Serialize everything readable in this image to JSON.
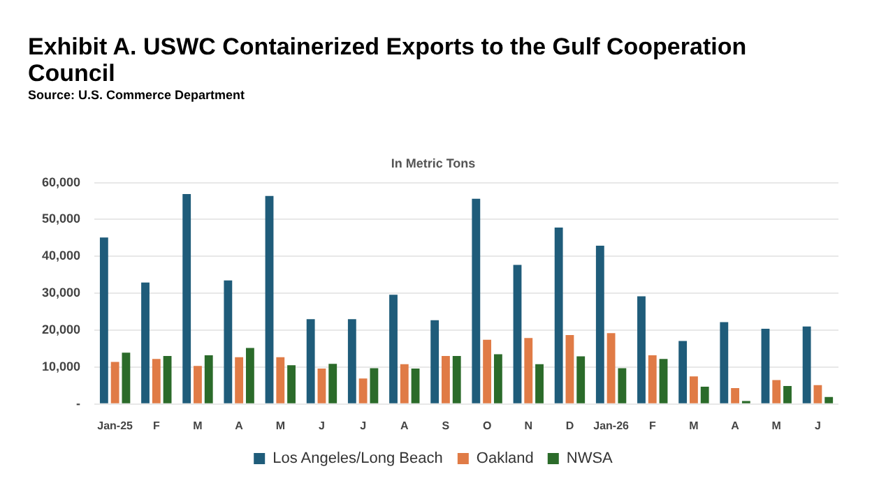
{
  "chart_data": {
    "type": "bar",
    "title": "Exhibit A. USWC Containerized Exports to the Gulf Cooperation Council",
    "subtitle": "In Metric Tons",
    "annotations": [
      "Source: U.S. Commerce Department"
    ],
    "categories": [
      "Jan-25",
      "F",
      "M",
      "A",
      "M",
      "J",
      "J",
      "A",
      "S",
      "O",
      "N",
      "D",
      "Jan-26",
      "F",
      "M",
      "A",
      "M",
      "J"
    ],
    "series": [
      {
        "name": "Los Angeles/Long Beach",
        "color": "#1f5c7a",
        "values": [
          45100,
          32900,
          56900,
          33500,
          56400,
          23000,
          23000,
          29600,
          22700,
          55600,
          37700,
          47800,
          42900,
          29200,
          17100,
          22200,
          20400,
          21000
        ]
      },
      {
        "name": "Oakland",
        "color": "#e07b46",
        "values": [
          11400,
          12200,
          10300,
          12700,
          12700,
          9600,
          6900,
          10800,
          13000,
          17400,
          17900,
          18700,
          19200,
          13200,
          7500,
          4300,
          6500,
          5100
        ]
      },
      {
        "name": "NWSA",
        "color": "#2b6b2a",
        "values": [
          13900,
          13000,
          13200,
          15200,
          10500,
          10900,
          9700,
          9600,
          13000,
          13500,
          10800,
          12900,
          9700,
          12200,
          4700,
          800,
          4900,
          1900
        ]
      }
    ],
    "ylim": [
      0,
      60000
    ],
    "yticks": [
      {
        "value": 0,
        "label": "-"
      },
      {
        "value": 10000,
        "label": "10,000"
      },
      {
        "value": 20000,
        "label": "20,000"
      },
      {
        "value": 30000,
        "label": "30,000"
      },
      {
        "value": 40000,
        "label": "40,000"
      },
      {
        "value": 50000,
        "label": "50,000"
      },
      {
        "value": 60000,
        "label": "60,000"
      }
    ],
    "grid": "y",
    "legend": "bottom"
  }
}
